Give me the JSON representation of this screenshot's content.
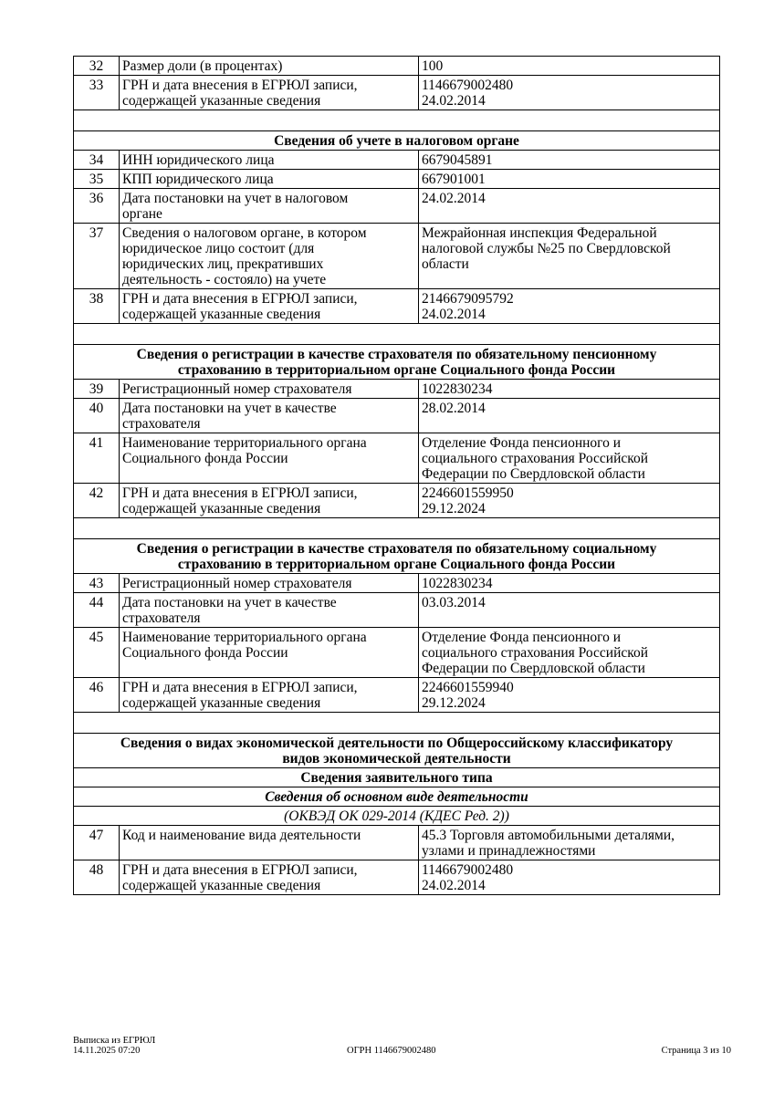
{
  "rows": [
    {
      "type": "item",
      "num": "32",
      "label": "Размер доли (в процентах)",
      "value": "100"
    },
    {
      "type": "item",
      "num": "33",
      "label": "ГРН и дата внесения в ЕГРЮЛ записи,\nсодержащей указанные сведения",
      "value": "1146679002480\n24.02.2014"
    },
    {
      "type": "empty"
    },
    {
      "type": "section",
      "text": "Сведения об учете в налоговом органе"
    },
    {
      "type": "item",
      "num": "34",
      "label": "ИНН юридического лица",
      "value": "6679045891"
    },
    {
      "type": "item",
      "num": "35",
      "label": "КПП юридического лица",
      "value": "667901001"
    },
    {
      "type": "item",
      "num": "36",
      "label": "Дата постановки на учет в налоговом\nоргане",
      "value": "24.02.2014"
    },
    {
      "type": "item",
      "num": "37",
      "label": "Сведения о налоговом органе, в котором\nюридическое лицо состоит (для\nюридических лиц, прекративших\nдеятельность - состояло) на учете",
      "value": "Межрайонная инспекция Федеральной\nналоговой службы №25 по Свердловской\nобласти"
    },
    {
      "type": "item",
      "num": "38",
      "label": "ГРН и дата внесения в ЕГРЮЛ записи,\nсодержащей указанные сведения",
      "value": "2146679095792\n24.02.2014"
    },
    {
      "type": "empty"
    },
    {
      "type": "section",
      "text": "Сведения о регистрации в качестве страхователя по обязательному пенсионному\nстрахованию в территориальном органе Социального фонда России"
    },
    {
      "type": "item",
      "num": "39",
      "label": "Регистрационный номер страхователя",
      "value": "1022830234"
    },
    {
      "type": "item",
      "num": "40",
      "label": "Дата постановки на учет в качестве\nстрахователя",
      "value": "28.02.2014"
    },
    {
      "type": "item",
      "num": "41",
      "label": "Наименование территориального органа\nСоциального фонда России",
      "value": "Отделение Фонда пенсионного и\nсоциального страхования Российской\nФедерации по Свердловской области"
    },
    {
      "type": "item",
      "num": "42",
      "label": "ГРН и дата внесения в ЕГРЮЛ записи,\nсодержащей указанные сведения",
      "value": "2246601559950\n29.12.2024"
    },
    {
      "type": "empty"
    },
    {
      "type": "section",
      "text": "Сведения о регистрации в качестве страхователя по обязательному социальному\nстрахованию в территориальном органе Социального фонда России"
    },
    {
      "type": "item",
      "num": "43",
      "label": "Регистрационный номер страхователя",
      "value": "1022830234"
    },
    {
      "type": "item",
      "num": "44",
      "label": "Дата постановки на учет в качестве\nстрахователя",
      "value": "03.03.2014"
    },
    {
      "type": "item",
      "num": "45",
      "label": "Наименование территориального органа\nСоциального фонда России",
      "value": "Отделение Фонда пенсионного и\nсоциального страхования Российской\nФедерации по Свердловской области"
    },
    {
      "type": "item",
      "num": "46",
      "label": "ГРН и дата внесения в ЕГРЮЛ записи,\nсодержащей указанные сведения",
      "value": "2246601559940\n29.12.2024"
    },
    {
      "type": "empty"
    },
    {
      "type": "section",
      "text": "Сведения о видах экономической деятельности по Общероссийскому классификатору\nвидов экономической деятельности"
    },
    {
      "type": "section",
      "text": "Сведения заявительного типа"
    },
    {
      "type": "subsection",
      "text": "Сведения об основном виде деятельности"
    },
    {
      "type": "italic",
      "text": "(ОКВЭД ОК 029-2014 (КДЕС Ред. 2))"
    },
    {
      "type": "item",
      "num": "47",
      "label": "Код и наименование вида деятельности",
      "value": "45.3 Торговля автомобильными деталями,\nузлами и принадлежностями"
    },
    {
      "type": "item",
      "num": "48",
      "label": "ГРН и дата внесения в ЕГРЮЛ записи,\nсодержащей указанные сведения",
      "value": "1146679002480\n24.02.2014"
    }
  ],
  "footer": {
    "doc_title": "Выписка из ЕГРЮЛ",
    "datetime": "14.11.2025 07:20",
    "ogrn": "ОГРН 1146679002480",
    "page": "Страница 3 из 10"
  }
}
